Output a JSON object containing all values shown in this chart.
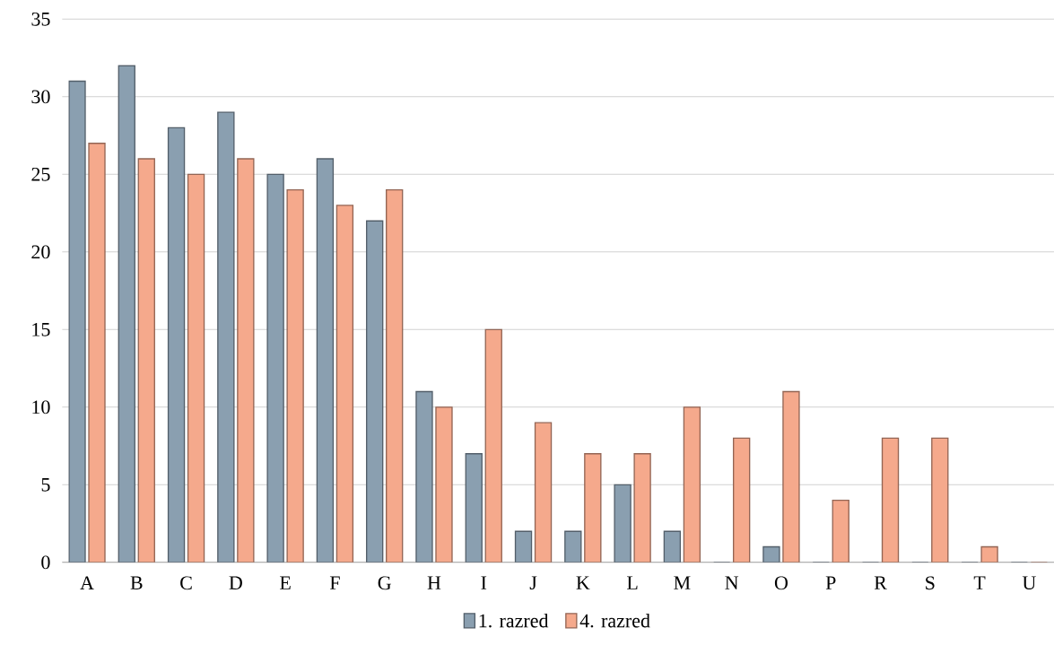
{
  "chart_data": {
    "type": "bar",
    "categories": [
      "A",
      "B",
      "C",
      "D",
      "E",
      "F",
      "G",
      "H",
      "I",
      "J",
      "K",
      "L",
      "M",
      "N",
      "O",
      "P",
      "R",
      "S",
      "T",
      "U"
    ],
    "series": [
      {
        "name": "1. razred",
        "color": "#8a9fb0",
        "values": [
          31,
          32,
          28,
          29,
          25,
          26,
          22,
          11,
          7,
          2,
          2,
          5,
          2,
          0,
          1,
          0,
          0,
          0,
          0,
          0
        ]
      },
      {
        "name": "4. razred",
        "color": "#f5a98c",
        "values": [
          27,
          26,
          25,
          26,
          24,
          23,
          24,
          10,
          15,
          9,
          7,
          7,
          10,
          8,
          11,
          4,
          8,
          8,
          1,
          0
        ]
      }
    ],
    "ylim": [
      0,
      35
    ],
    "yticks": [
      0,
      5,
      10,
      15,
      20,
      25,
      30,
      35
    ],
    "grid": "y",
    "legend": "bottom"
  }
}
